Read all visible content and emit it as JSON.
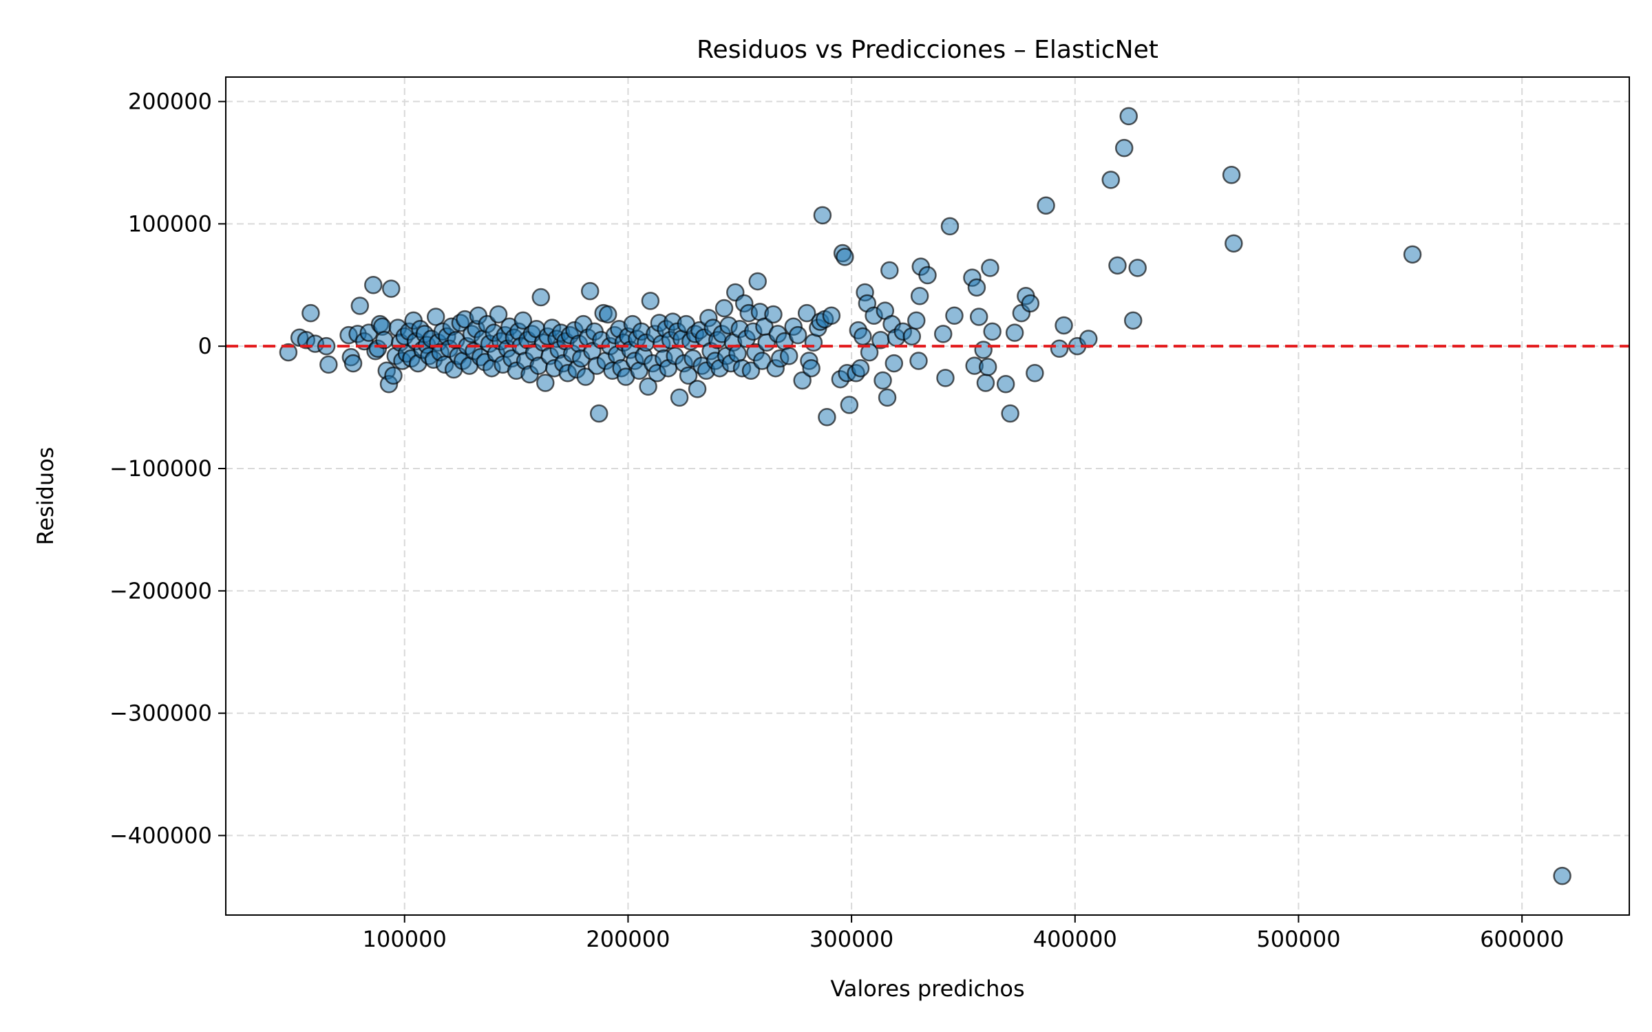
{
  "chart_data": {
    "type": "scatter",
    "title": "Residuos vs Predicciones – ElasticNet",
    "xlabel": "Valores predichos",
    "ylabel": "Residuos",
    "xlim": [
      20000,
      648000
    ],
    "ylim": [
      -465000,
      220000
    ],
    "xticks": [
      100000,
      200000,
      300000,
      400000,
      500000,
      600000
    ],
    "yticks": [
      200000,
      100000,
      0,
      -100000,
      -200000,
      -300000,
      -400000
    ],
    "xtick_labels": [
      "100000",
      "200000",
      "300000",
      "400000",
      "500000",
      "600000"
    ],
    "ytick_labels": [
      "200000",
      "100000",
      "0",
      "−100000",
      "−200000",
      "−300000",
      "−400000"
    ],
    "grid": true,
    "reference_line": {
      "y": 0,
      "color": "#e31a1c",
      "style": "dashed"
    },
    "point_color": "#1f77b4",
    "edge_color": "#000000",
    "points": [
      [
        48000,
        -5000
      ],
      [
        53000,
        7000
      ],
      [
        56000,
        5000
      ],
      [
        58000,
        27000
      ],
      [
        60000,
        2000
      ],
      [
        65000,
        0
      ],
      [
        66000,
        -15000
      ],
      [
        75000,
        9000
      ],
      [
        76000,
        -9000
      ],
      [
        77000,
        -14000
      ],
      [
        79000,
        10000
      ],
      [
        80000,
        33000
      ],
      [
        82000,
        4000
      ],
      [
        84000,
        11000
      ],
      [
        86000,
        50000
      ],
      [
        87000,
        -4000
      ],
      [
        88000,
        -2000
      ],
      [
        89000,
        18000
      ],
      [
        90000,
        16000
      ],
      [
        91000,
        5000
      ],
      [
        92000,
        -20000
      ],
      [
        93000,
        -31000
      ],
      [
        94000,
        47000
      ],
      [
        95000,
        -24000
      ],
      [
        96000,
        -8000
      ],
      [
        97000,
        15000
      ],
      [
        98000,
        3000
      ],
      [
        99000,
        -12000
      ],
      [
        100000,
        8000
      ],
      [
        101000,
        -6000
      ],
      [
        102000,
        12000
      ],
      [
        103000,
        -10000
      ],
      [
        104000,
        21000
      ],
      [
        105000,
        4000
      ],
      [
        106000,
        -14000
      ],
      [
        107000,
        14000
      ],
      [
        108000,
        -3000
      ],
      [
        109000,
        10000
      ],
      [
        110000,
        1000
      ],
      [
        111000,
        -8000
      ],
      [
        112000,
        6000
      ],
      [
        113000,
        -11000
      ],
      [
        114000,
        24000
      ],
      [
        115000,
        3000
      ],
      [
        116000,
        -5000
      ],
      [
        117000,
        12000
      ],
      [
        118000,
        -15000
      ],
      [
        119000,
        8000
      ],
      [
        120000,
        -2000
      ],
      [
        121000,
        16000
      ],
      [
        122000,
        -19000
      ],
      [
        123000,
        5000
      ],
      [
        124000,
        -8000
      ],
      [
        125000,
        19000
      ],
      [
        126000,
        -12000
      ],
      [
        127000,
        22000
      ],
      [
        128000,
        0
      ],
      [
        129000,
        -16000
      ],
      [
        130000,
        10000
      ],
      [
        131000,
        -4000
      ],
      [
        132000,
        14000
      ],
      [
        133000,
        25000
      ],
      [
        134000,
        -9000
      ],
      [
        135000,
        6000
      ],
      [
        136000,
        -13000
      ],
      [
        137000,
        18000
      ],
      [
        138000,
        2000
      ],
      [
        139000,
        -18000
      ],
      [
        140000,
        11000
      ],
      [
        141000,
        -6000
      ],
      [
        142000,
        26000
      ],
      [
        143000,
        4000
      ],
      [
        144000,
        -15000
      ],
      [
        145000,
        9000
      ],
      [
        146000,
        -2000
      ],
      [
        147000,
        16000
      ],
      [
        148000,
        -10000
      ],
      [
        149000,
        7000
      ],
      [
        150000,
        -20000
      ],
      [
        151000,
        12000
      ],
      [
        152000,
        0
      ],
      [
        153000,
        21000
      ],
      [
        154000,
        -12000
      ],
      [
        155000,
        5000
      ],
      [
        156000,
        -23000
      ],
      [
        157000,
        10000
      ],
      [
        158000,
        -5000
      ],
      [
        159000,
        14000
      ],
      [
        160000,
        -16000
      ],
      [
        161000,
        40000
      ],
      [
        162000,
        3000
      ],
      [
        163000,
        -30000
      ],
      [
        164000,
        8000
      ],
      [
        165000,
        -8000
      ],
      [
        166000,
        15000
      ],
      [
        167000,
        -18000
      ],
      [
        168000,
        6000
      ],
      [
        169000,
        -3000
      ],
      [
        170000,
        11000
      ],
      [
        171000,
        -14000
      ],
      [
        172000,
        4000
      ],
      [
        173000,
        -22000
      ],
      [
        174000,
        9000
      ],
      [
        175000,
        -6000
      ],
      [
        176000,
        13000
      ],
      [
        177000,
        -19000
      ],
      [
        178000,
        2000
      ],
      [
        179000,
        -10000
      ],
      [
        180000,
        18000
      ],
      [
        181000,
        -25000
      ],
      [
        182000,
        7000
      ],
      [
        183000,
        45000
      ],
      [
        184000,
        -4000
      ],
      [
        185000,
        12000
      ],
      [
        186000,
        -16000
      ],
      [
        187000,
        -55000
      ],
      [
        188000,
        5000
      ],
      [
        189000,
        27000
      ],
      [
        190000,
        -12000
      ],
      [
        191000,
        26000
      ],
      [
        192000,
        0
      ],
      [
        193000,
        -20000
      ],
      [
        194000,
        9000
      ],
      [
        195000,
        -7000
      ],
      [
        196000,
        14000
      ],
      [
        197000,
        -18000
      ],
      [
        198000,
        3000
      ],
      [
        199000,
        -25000
      ],
      [
        200000,
        8000
      ],
      [
        201000,
        -3000
      ],
      [
        202000,
        18000
      ],
      [
        203000,
        -12000
      ],
      [
        204000,
        6000
      ],
      [
        205000,
        -20000
      ],
      [
        206000,
        12000
      ],
      [
        207000,
        -8000
      ],
      [
        208000,
        3000
      ],
      [
        209000,
        -33000
      ],
      [
        210000,
        37000
      ],
      [
        211000,
        -14000
      ],
      [
        212000,
        10000
      ],
      [
        213000,
        -22000
      ],
      [
        214000,
        19000
      ],
      [
        215000,
        2000
      ],
      [
        216000,
        -10000
      ],
      [
        217000,
        14000
      ],
      [
        218000,
        -18000
      ],
      [
        219000,
        5000
      ],
      [
        220000,
        20000
      ],
      [
        221000,
        -8000
      ],
      [
        222000,
        12000
      ],
      [
        223000,
        -42000
      ],
      [
        224000,
        6000
      ],
      [
        225000,
        -14000
      ],
      [
        226000,
        18000
      ],
      [
        227000,
        -24000
      ],
      [
        228000,
        4000
      ],
      [
        229000,
        -10000
      ],
      [
        230000,
        10000
      ],
      [
        231000,
        -35000
      ],
      [
        232000,
        13000
      ],
      [
        233000,
        -16000
      ],
      [
        234000,
        7000
      ],
      [
        235000,
        -20000
      ],
      [
        236000,
        23000
      ],
      [
        237000,
        -4000
      ],
      [
        238000,
        15000
      ],
      [
        239000,
        -12000
      ],
      [
        240000,
        5000
      ],
      [
        241000,
        -18000
      ],
      [
        242000,
        10000
      ],
      [
        243000,
        31000
      ],
      [
        244000,
        -8000
      ],
      [
        245000,
        17000
      ],
      [
        246000,
        -14000
      ],
      [
        247000,
        3000
      ],
      [
        248000,
        44000
      ],
      [
        249000,
        -6000
      ],
      [
        250000,
        14000
      ],
      [
        251000,
        -18000
      ],
      [
        252000,
        35000
      ],
      [
        253000,
        6000
      ],
      [
        254000,
        27000
      ],
      [
        255000,
        -20000
      ],
      [
        256000,
        12000
      ],
      [
        257000,
        -5000
      ],
      [
        258000,
        53000
      ],
      [
        259000,
        28000
      ],
      [
        260000,
        -12000
      ],
      [
        261000,
        16000
      ],
      [
        262000,
        3000
      ],
      [
        265000,
        26000
      ],
      [
        266000,
        -18000
      ],
      [
        267000,
        10000
      ],
      [
        268000,
        -10000
      ],
      [
        270000,
        4000
      ],
      [
        272000,
        -8000
      ],
      [
        274000,
        16000
      ],
      [
        276000,
        9000
      ],
      [
        278000,
        -28000
      ],
      [
        280000,
        27000
      ],
      [
        281000,
        -12000
      ],
      [
        282000,
        -18000
      ],
      [
        283000,
        3000
      ],
      [
        285000,
        15000
      ],
      [
        286000,
        20000
      ],
      [
        287000,
        107000
      ],
      [
        288000,
        22000
      ],
      [
        289000,
        -58000
      ],
      [
        291000,
        25000
      ],
      [
        295000,
        -27000
      ],
      [
        296000,
        76000
      ],
      [
        297000,
        73000
      ],
      [
        298000,
        -22000
      ],
      [
        299000,
        -48000
      ],
      [
        302000,
        -22000
      ],
      [
        303000,
        13000
      ],
      [
        304000,
        -18000
      ],
      [
        305000,
        8000
      ],
      [
        306000,
        44000
      ],
      [
        307000,
        35000
      ],
      [
        308000,
        -5000
      ],
      [
        310000,
        25000
      ],
      [
        313000,
        5000
      ],
      [
        314000,
        -28000
      ],
      [
        315000,
        29000
      ],
      [
        316000,
        -42000
      ],
      [
        317000,
        62000
      ],
      [
        318000,
        18000
      ],
      [
        319000,
        -14000
      ],
      [
        320000,
        7000
      ],
      [
        323000,
        12000
      ],
      [
        327000,
        8000
      ],
      [
        329000,
        21000
      ],
      [
        330000,
        -12000
      ],
      [
        331000,
        65000
      ],
      [
        330500,
        41000
      ],
      [
        334000,
        58000
      ],
      [
        341000,
        10000
      ],
      [
        342000,
        -26000
      ],
      [
        344000,
        98000
      ],
      [
        346000,
        25000
      ],
      [
        354000,
        56000
      ],
      [
        355000,
        -16000
      ],
      [
        356000,
        48000
      ],
      [
        357000,
        24000
      ],
      [
        359000,
        -3000
      ],
      [
        360000,
        -30000
      ],
      [
        361000,
        -17000
      ],
      [
        362000,
        64000
      ],
      [
        363000,
        12000
      ],
      [
        369000,
        -31000
      ],
      [
        371000,
        -55000
      ],
      [
        373000,
        11000
      ],
      [
        376000,
        27000
      ],
      [
        378000,
        41000
      ],
      [
        380000,
        35000
      ],
      [
        382000,
        -22000
      ],
      [
        387000,
        115000
      ],
      [
        393000,
        -2000
      ],
      [
        395000,
        17000
      ],
      [
        401000,
        0
      ],
      [
        406000,
        6000
      ],
      [
        416000,
        136000
      ],
      [
        419000,
        66000
      ],
      [
        422000,
        162000
      ],
      [
        424000,
        188000
      ],
      [
        426000,
        21000
      ],
      [
        428000,
        64000
      ],
      [
        470000,
        140000
      ],
      [
        471000,
        84000
      ],
      [
        551000,
        75000
      ],
      [
        618000,
        -433000
      ]
    ]
  }
}
